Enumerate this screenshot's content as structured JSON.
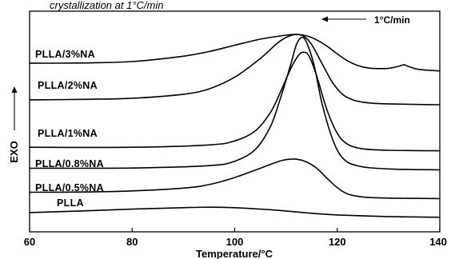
{
  "caption": "crystallization at 1°C/min",
  "chart_data": {
    "type": "line",
    "title": "",
    "xlabel": "Temperature/°C",
    "ylabel": "EXO",
    "xlim": [
      60,
      140
    ],
    "xticks": [
      60,
      80,
      100,
      120,
      140
    ],
    "grid": false,
    "annotation": "1°C/min",
    "series": [
      {
        "name": "PLLA/3%NA",
        "x": [
          60,
          70,
          80,
          90,
          95,
          100,
          105,
          110,
          112,
          114,
          116,
          118,
          120,
          122,
          124,
          126,
          128,
          130,
          132,
          133,
          134,
          136,
          140
        ],
        "y": [
          6.95,
          6.96,
          7.02,
          7.25,
          7.45,
          7.72,
          7.98,
          8.15,
          8.18,
          8.12,
          7.95,
          7.68,
          7.35,
          7.05,
          6.85,
          6.75,
          6.72,
          6.73,
          6.82,
          6.88,
          6.8,
          6.68,
          6.62
        ]
      },
      {
        "name": "PLLA/2%NA",
        "x": [
          60,
          70,
          80,
          90,
          95,
          100,
          105,
          108,
          110,
          112,
          113.5,
          115,
          117,
          119,
          121,
          123,
          125,
          128,
          132,
          136,
          140
        ],
        "y": [
          5.38,
          5.4,
          5.45,
          5.62,
          5.85,
          6.35,
          7.15,
          7.75,
          8.05,
          8.18,
          8.1,
          7.75,
          6.95,
          6.15,
          5.62,
          5.38,
          5.28,
          5.22,
          5.2,
          5.18,
          5.17
        ]
      },
      {
        "name": "PLLA/1%NA",
        "x": [
          60,
          80,
          95,
          100,
          104,
          107,
          109,
          111,
          112.5,
          113.5,
          114.5,
          116,
          118,
          120,
          122,
          125,
          130,
          140
        ],
        "y": [
          3.35,
          3.35,
          3.45,
          3.62,
          4.05,
          4.85,
          5.75,
          6.75,
          7.3,
          7.42,
          7.25,
          6.4,
          4.95,
          3.95,
          3.48,
          3.28,
          3.22,
          3.2
        ]
      },
      {
        "name": "PLLA/0.8%NA",
        "x": [
          60,
          80,
          95,
          100,
          104,
          107,
          109,
          111,
          112,
          113,
          114,
          115.5,
          117,
          119,
          121,
          124,
          130,
          140
        ],
        "y": [
          2.45,
          2.46,
          2.56,
          2.75,
          3.25,
          4.25,
          5.5,
          6.95,
          7.72,
          8.05,
          7.85,
          6.85,
          5.25,
          3.75,
          2.9,
          2.55,
          2.42,
          2.38
        ]
      },
      {
        "name": "PLLA/0.5%NA",
        "x": [
          60,
          70,
          80,
          90,
          95,
          100,
          105,
          108,
          110,
          112,
          114,
          116,
          118,
          120,
          122,
          125,
          130,
          140
        ],
        "y": [
          1.42,
          1.43,
          1.48,
          1.6,
          1.75,
          2.05,
          2.45,
          2.7,
          2.82,
          2.84,
          2.72,
          2.45,
          2.02,
          1.62,
          1.35,
          1.22,
          1.17,
          1.15
        ]
      },
      {
        "name": "PLLA",
        "x": [
          60,
          70,
          80,
          90,
          95,
          100,
          105,
          110,
          115,
          120,
          130,
          140
        ],
        "y": [
          0.55,
          0.62,
          0.7,
          0.76,
          0.78,
          0.76,
          0.7,
          0.62,
          0.52,
          0.45,
          0.38,
          0.35
        ]
      }
    ],
    "label_positions_note": ""
  }
}
